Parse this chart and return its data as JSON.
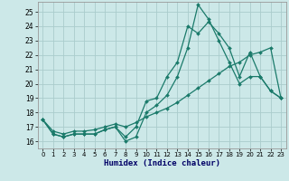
{
  "xlabel": "Humidex (Indice chaleur)",
  "bg_color": "#cce8e8",
  "grid_color": "#aacccc",
  "line_color": "#1a7a6a",
  "xlim": [
    -0.5,
    23.5
  ],
  "ylim": [
    15.5,
    25.7
  ],
  "xticks": [
    0,
    1,
    2,
    3,
    4,
    5,
    6,
    7,
    8,
    9,
    10,
    11,
    12,
    13,
    14,
    15,
    16,
    17,
    18,
    19,
    20,
    21,
    22,
    23
  ],
  "yticks": [
    16,
    17,
    18,
    19,
    20,
    21,
    22,
    23,
    24,
    25
  ],
  "line1_x": [
    0,
    1,
    2,
    3,
    4,
    5,
    6,
    7,
    8,
    9,
    10,
    11,
    12,
    13,
    14,
    15,
    16,
    17,
    18,
    19,
    20,
    21,
    22,
    23
  ],
  "line1_y": [
    17.5,
    16.5,
    16.3,
    16.5,
    16.5,
    16.5,
    16.8,
    17.0,
    16.3,
    17.0,
    18.8,
    19.0,
    20.5,
    21.5,
    24.0,
    23.5,
    24.3,
    23.5,
    22.5,
    20.5,
    22.2,
    20.5,
    19.5,
    19.0
  ],
  "line2_x": [
    0,
    1,
    2,
    3,
    4,
    5,
    6,
    7,
    8,
    9,
    10,
    11,
    12,
    13,
    14,
    15,
    16,
    17,
    18,
    19,
    20,
    21,
    22,
    23
  ],
  "line2_y": [
    17.5,
    16.5,
    16.3,
    16.5,
    16.5,
    16.5,
    16.8,
    17.0,
    16.0,
    16.3,
    18.0,
    18.5,
    19.2,
    20.5,
    22.5,
    25.5,
    24.5,
    23.0,
    21.5,
    20.0,
    20.5,
    20.5,
    19.5,
    19.0
  ],
  "line3_x": [
    0,
    1,
    2,
    3,
    4,
    5,
    6,
    7,
    8,
    9,
    10,
    11,
    12,
    13,
    14,
    15,
    16,
    17,
    18,
    19,
    20,
    21,
    22,
    23
  ],
  "line3_y": [
    17.5,
    16.7,
    16.5,
    16.7,
    16.7,
    16.8,
    17.0,
    17.2,
    17.0,
    17.3,
    17.7,
    18.0,
    18.3,
    18.7,
    19.2,
    19.7,
    20.2,
    20.7,
    21.2,
    21.5,
    22.0,
    22.2,
    22.5,
    19.0
  ]
}
